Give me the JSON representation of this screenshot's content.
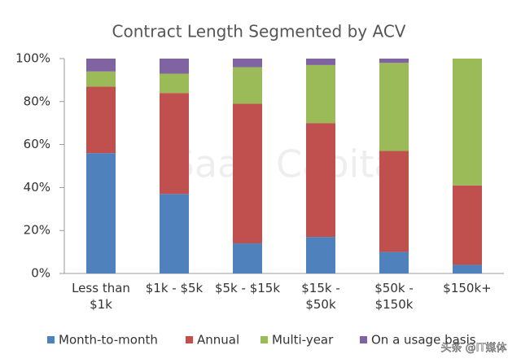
{
  "chart_data": {
    "type": "stacked_bar",
    "title": "Contract Length Segmented by ACV",
    "categories": [
      "Less than\n$1k",
      "$1k - $5k",
      "$5k - $15k",
      "$15k -\n$50k",
      "$50k -\n$150k",
      "$150k+"
    ],
    "series": [
      {
        "name": "Month-to-month",
        "color": "#4f81bd",
        "values": [
          56,
          37,
          14,
          17,
          10,
          4
        ]
      },
      {
        "name": "Annual",
        "color": "#c0504d",
        "values": [
          31,
          47,
          65,
          53,
          47,
          37
        ]
      },
      {
        "name": "Multi-year",
        "color": "#9bbb59",
        "values": [
          7,
          9,
          17,
          27,
          41,
          59
        ]
      },
      {
        "name": "On a usage basis",
        "color": "#8064a2",
        "values": [
          6,
          7,
          4,
          3,
          2,
          0
        ]
      }
    ],
    "ylim": [
      0,
      100
    ],
    "yticks": [
      {
        "value": 0,
        "label": "0%"
      },
      {
        "value": 20,
        "label": "20%"
      },
      {
        "value": 40,
        "label": "40%"
      },
      {
        "value": 60,
        "label": "60%"
      },
      {
        "value": 80,
        "label": "80%"
      },
      {
        "value": 100,
        "label": "100%"
      }
    ],
    "legend": "bottom",
    "watermarks": [
      "SaaS Capital",
      "头条 @IT媒体"
    ]
  }
}
